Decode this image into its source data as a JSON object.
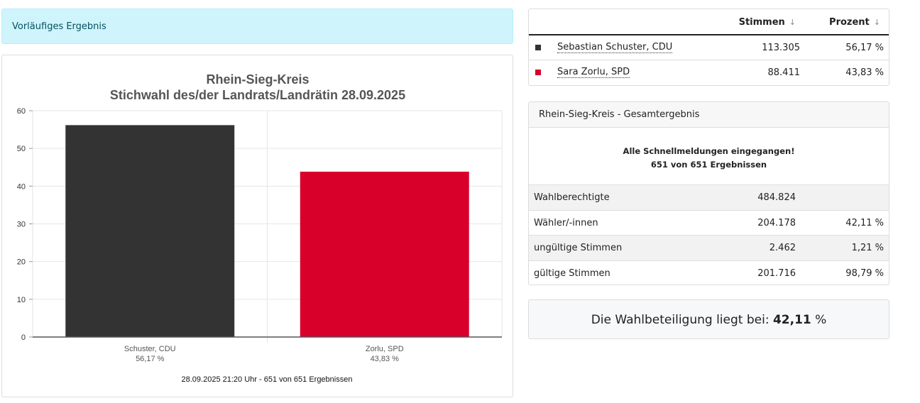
{
  "banner": {
    "text": "Vorläufiges Ergebnis"
  },
  "chart_data": {
    "type": "bar",
    "title": "Rhein-Sieg-Kreis",
    "subtitle": "Stichwahl des/der Landrats/Landrätin 28.09.2025",
    "categories": [
      "Schuster, CDU",
      "Zorlu, SPD"
    ],
    "category_sublabels": [
      "56,17 %",
      "43,83 %"
    ],
    "values": [
      56.17,
      43.83
    ],
    "colors": [
      "#333333",
      "#d8002b"
    ],
    "ylim": [
      0,
      60
    ],
    "yticks": [
      0,
      10,
      20,
      30,
      40,
      50,
      60
    ],
    "grid": true,
    "legend": "none",
    "footer": "28.09.2025 21:20 Uhr - 651 von 651 Ergebnissen"
  },
  "results": {
    "headers": {
      "votes": "Stimmen",
      "percent": "Prozent"
    },
    "sort_icon": "↓",
    "candidates": [
      {
        "name": "Sebastian Schuster, CDU",
        "votes": "113.305",
        "percent": "56,17 %",
        "color": "#333333"
      },
      {
        "name": "Sara Zorlu, SPD",
        "votes": "88.411",
        "percent": "43,83 %",
        "color": "#d8002b"
      }
    ]
  },
  "summary": {
    "header": "Rhein-Sieg-Kreis - Gesamtergebnis",
    "notice_line1": "Alle Schnellmeldungen eingegangen!",
    "notice_line2": "651 von 651 Ergebnissen",
    "rows": [
      {
        "label": "Wahlberechtigte",
        "value": "484.824",
        "percent": ""
      },
      {
        "label": "Wähler/-innen",
        "value": "204.178",
        "percent": "42,11 %"
      },
      {
        "label": "ungültige Stimmen",
        "value": "2.462",
        "percent": "1,21 %"
      },
      {
        "label": "gültige Stimmen",
        "value": "201.716",
        "percent": "98,79 %"
      }
    ]
  },
  "turnout": {
    "prefix": "Die Wahlbeteiligung liegt bei:",
    "value": "42,11",
    "unit": "%"
  }
}
